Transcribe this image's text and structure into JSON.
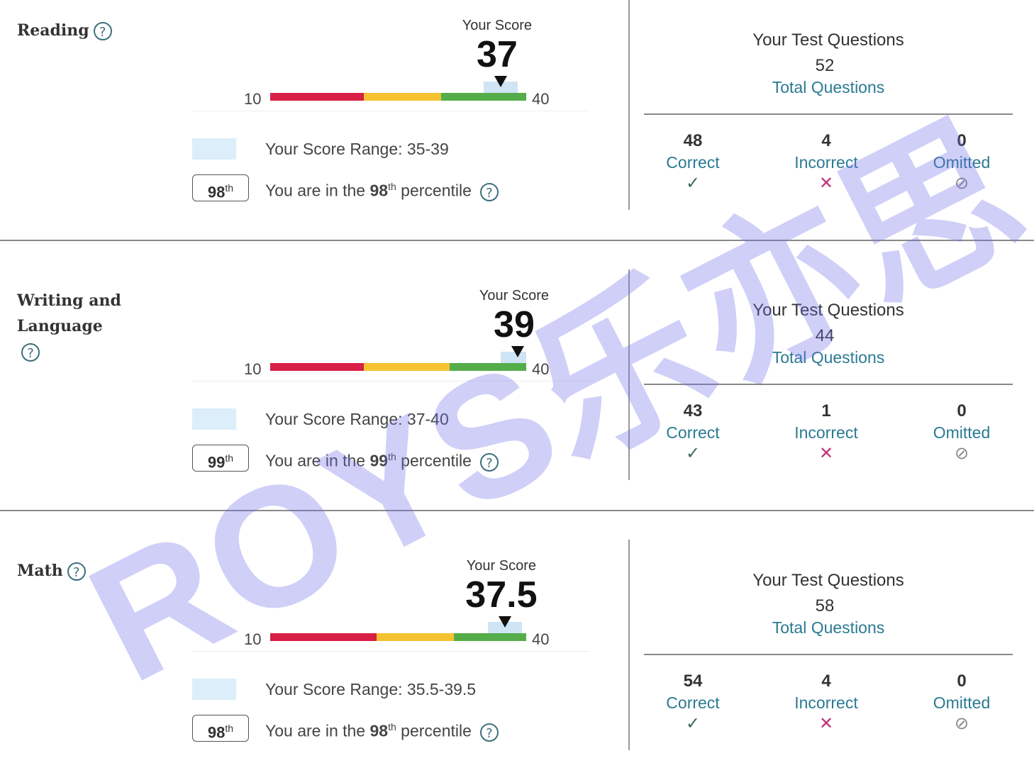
{
  "scale": {
    "min": 10,
    "max": 40,
    "min_label": "10",
    "max_label": "40"
  },
  "your_score_label": "Your Score",
  "range_prefix": "Your Score Range: ",
  "percentile_prefix": "You are in the ",
  "percentile_suffix": " percentile",
  "th": "th",
  "help_glyph": "?",
  "questions_title": "Your Test Questions",
  "total_questions_label": "Total Questions",
  "correct_label": "Correct",
  "incorrect_label": "Incorrect",
  "omitted_label": "Omitted",
  "icons": {
    "correct": "checkmark-icon",
    "incorrect": "x-icon",
    "omitted": "prohibited-icon",
    "help": "question-circle-icon"
  },
  "colors": {
    "red": "#d81f45",
    "yellow": "#f5c230",
    "green": "#55ad4a",
    "range": "#cfe4f5",
    "link": "#2b7a93",
    "incorrect": "#c0307a",
    "correct": "#3d6b5a",
    "omitted": "#888888"
  },
  "sections": [
    {
      "title": "Reading",
      "score": "37",
      "score_value": 37,
      "range": "35-39",
      "range_low": 35,
      "range_high": 39,
      "percentile": "98",
      "bands": [
        21,
        30
      ],
      "total": "52",
      "correct": "48",
      "incorrect": "4",
      "omitted": "0"
    },
    {
      "title": "Writing and Language",
      "score": "39",
      "score_value": 39,
      "range": "37-40",
      "range_low": 37,
      "range_high": 40,
      "percentile": "99",
      "bands": [
        21,
        31
      ],
      "total": "44",
      "correct": "43",
      "incorrect": "1",
      "omitted": "0"
    },
    {
      "title": "Math",
      "score": "37.5",
      "score_value": 37.5,
      "range": "35.5-39.5",
      "range_low": 35.5,
      "range_high": 39.5,
      "percentile": "98",
      "bands": [
        22.5,
        31.5
      ],
      "total": "58",
      "correct": "54",
      "incorrect": "4",
      "omitted": "0"
    }
  ],
  "watermark": "ROYS乐亦思"
}
